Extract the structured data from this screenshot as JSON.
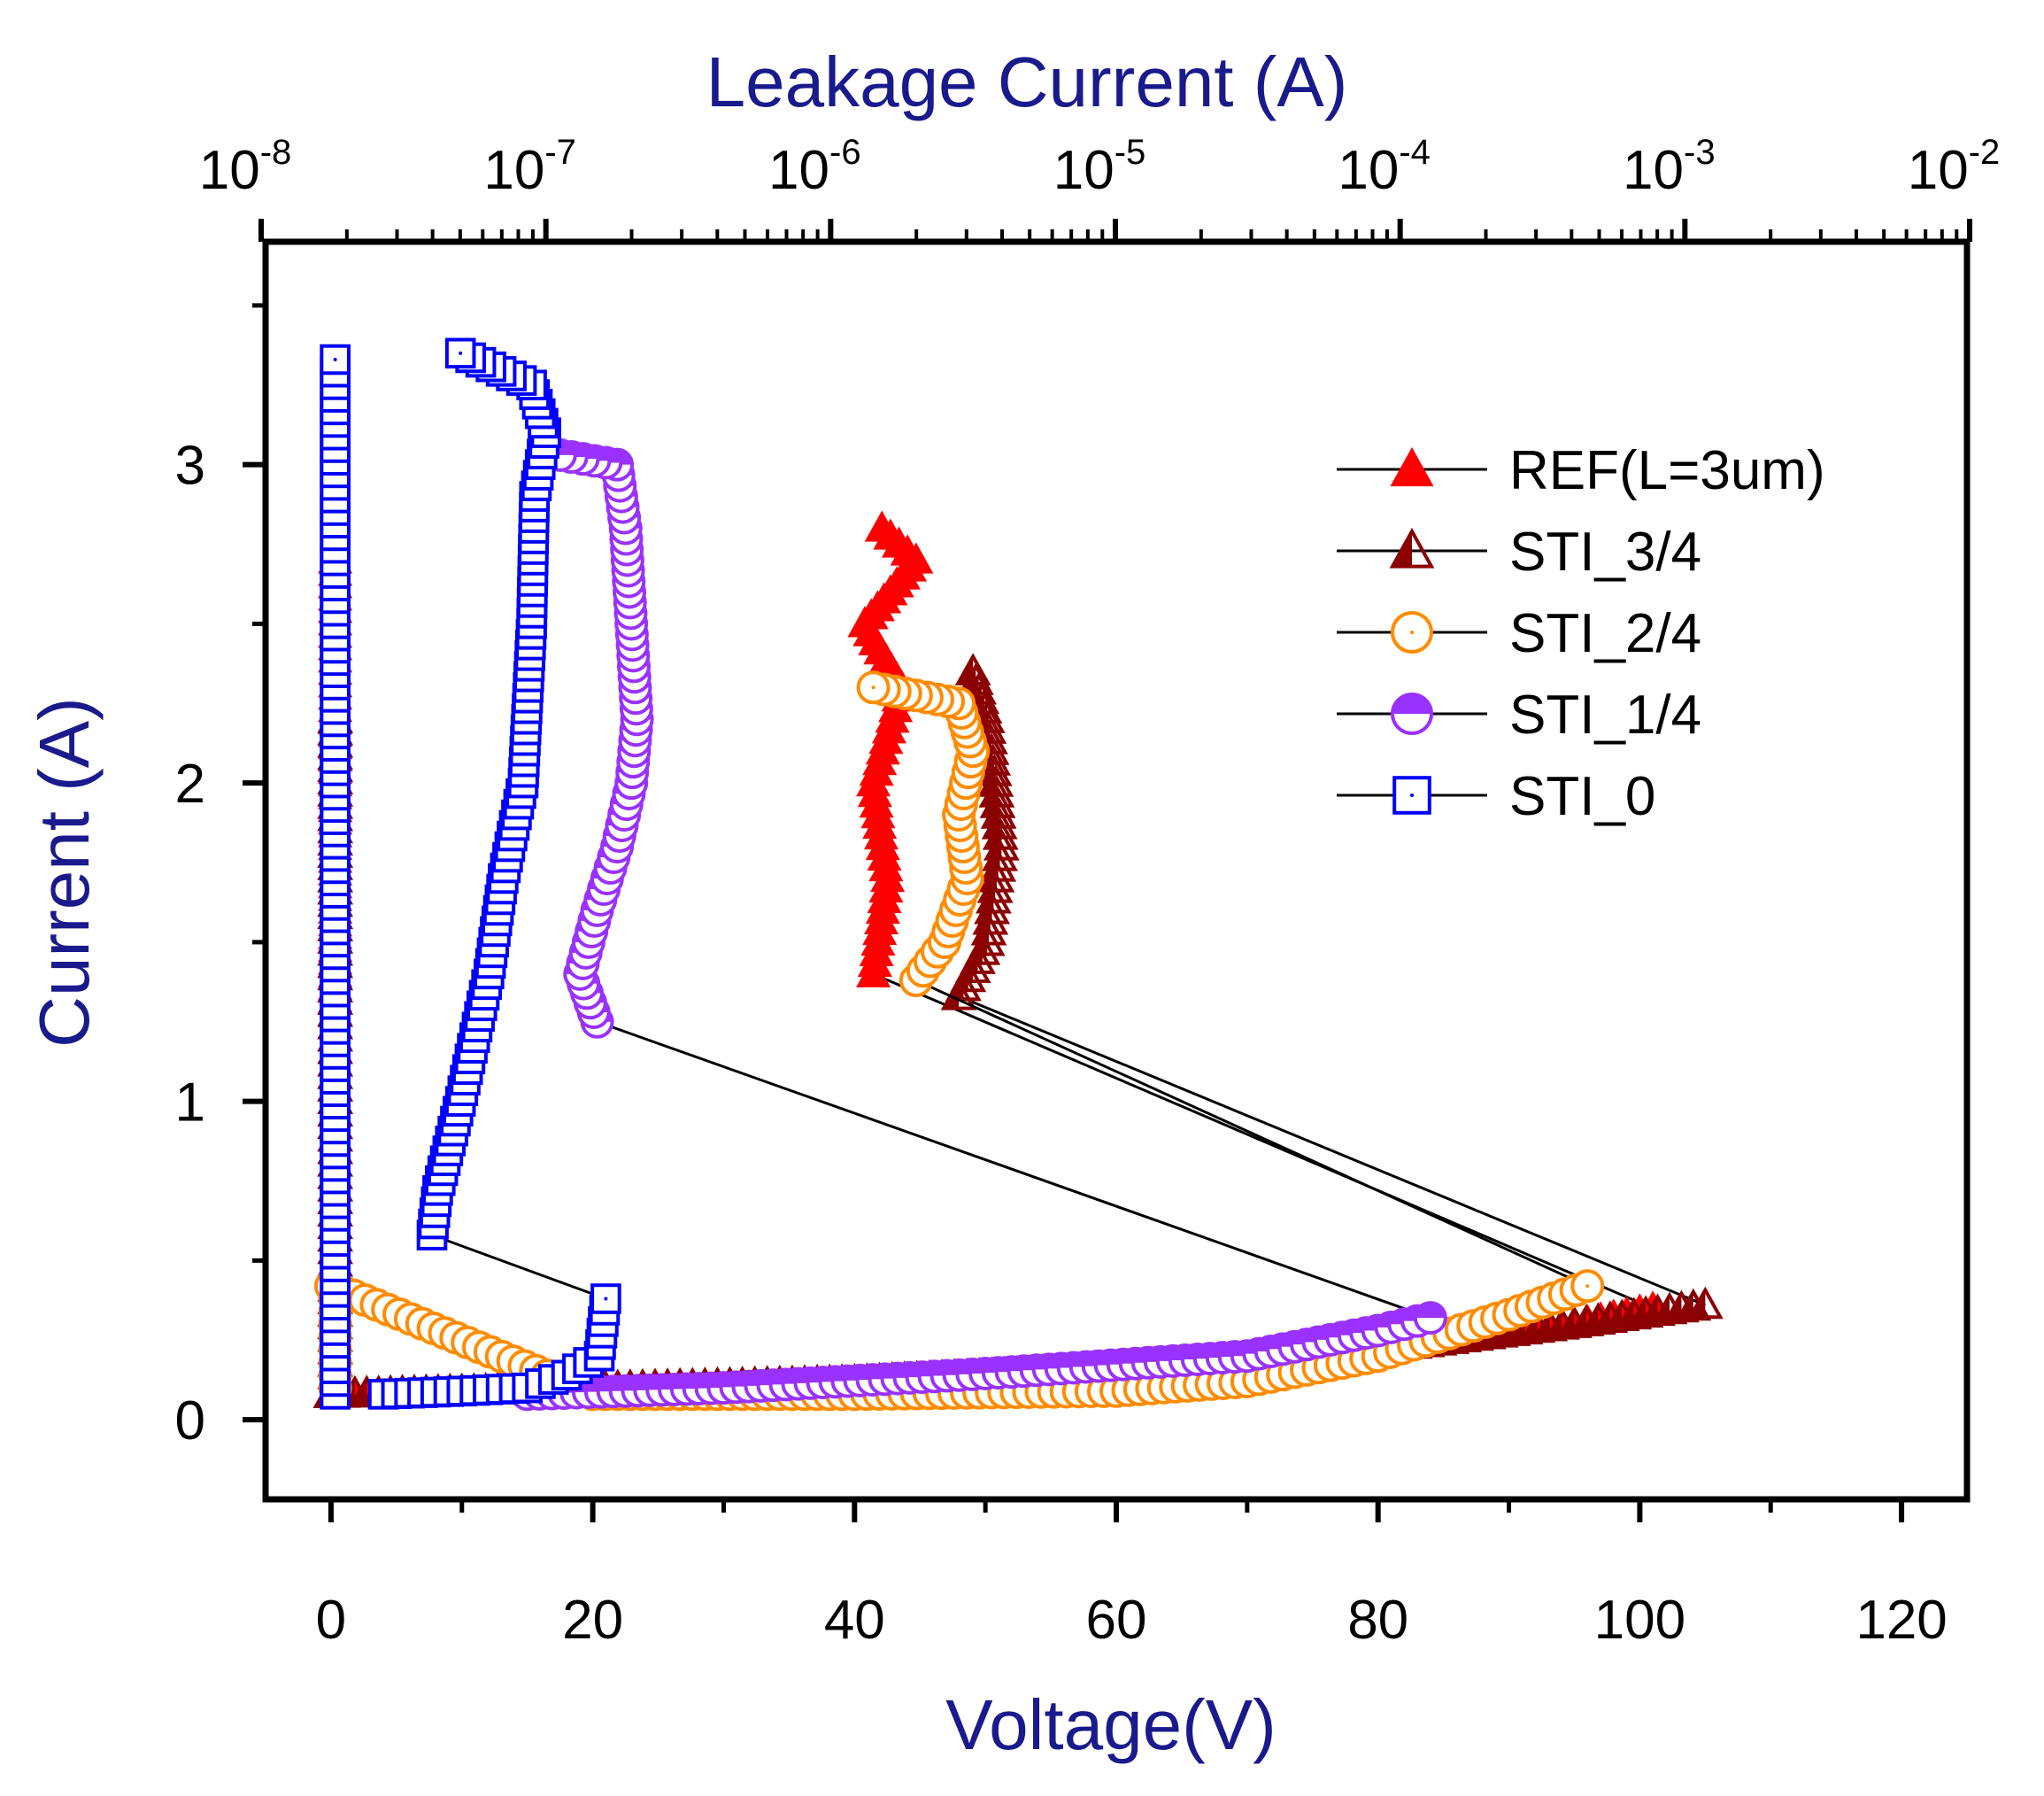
{
  "chart_data": {
    "type": "scatter",
    "title": "",
    "xlabel": "Voltage(V)",
    "ylabel": "Current (A)",
    "top_axis_label": "Leakage Current (A)",
    "xlim": [
      -5,
      125
    ],
    "ylim": [
      -0.25,
      3.7
    ],
    "top_xlim_exponent": [
      -8,
      -2
    ],
    "x_ticks": [
      "0",
      "20",
      "40",
      "60",
      "80",
      "100",
      "120"
    ],
    "y_ticks": [
      "0",
      "1",
      "2",
      "3"
    ],
    "top_ticks": [
      {
        "base": "10",
        "exp": "-8"
      },
      {
        "base": "10",
        "exp": "-7"
      },
      {
        "base": "10",
        "exp": "-6"
      },
      {
        "base": "10",
        "exp": "-5"
      },
      {
        "base": "10",
        "exp": "-4"
      },
      {
        "base": "10",
        "exp": "-3"
      },
      {
        "base": "10",
        "exp": "-2"
      }
    ],
    "legend_position": "top-right",
    "series": [
      {
        "name": "REF(L=3um)",
        "color": "#ff0000",
        "marker": "triangle-filled",
        "iv": [
          [
            0,
            0.08
          ],
          [
            10,
            0.09
          ],
          [
            20,
            0.1
          ],
          [
            40,
            0.12
          ],
          [
            60,
            0.16
          ],
          [
            80,
            0.22
          ],
          [
            95,
            0.3
          ],
          [
            101,
            0.35
          ]
        ],
        "leakage_exp": [
          [
            -7.74,
            0.1
          ],
          [
            -7.74,
            1.4
          ],
          [
            -7.74,
            2.0
          ],
          [
            -7.74,
            2.7
          ]
        ],
        "snapback": [
          [
            -5.85,
            1.4
          ],
          [
            -5.8,
            1.7
          ],
          [
            -5.85,
            2.0
          ],
          [
            -5.75,
            2.3
          ],
          [
            -5.88,
            2.5
          ],
          [
            -5.7,
            2.7
          ],
          [
            -5.82,
            2.8
          ]
        ]
      },
      {
        "name": "STI_3/4",
        "color": "#8b0000",
        "marker": "triangle-half",
        "iv": [
          [
            0,
            0.08
          ],
          [
            10,
            0.09
          ],
          [
            20,
            0.1
          ],
          [
            40,
            0.12
          ],
          [
            60,
            0.16
          ],
          [
            80,
            0.22
          ],
          [
            95,
            0.3
          ],
          [
            105,
            0.36
          ]
        ],
        "leakage_exp": [
          [
            -7.74,
            0.1
          ],
          [
            -7.74,
            1.2
          ],
          [
            -7.74,
            2.2
          ]
        ],
        "snapback": [
          [
            -5.55,
            1.33
          ],
          [
            -5.45,
            1.5
          ],
          [
            -5.4,
            1.8
          ],
          [
            -5.42,
            2.0
          ],
          [
            -5.45,
            2.2
          ],
          [
            -5.5,
            2.35
          ]
        ]
      },
      {
        "name": "STI_2/4",
        "color": "#ff8c00",
        "marker": "circle-open",
        "iv": [
          [
            0,
            0.42
          ],
          [
            20,
            0.08
          ],
          [
            40,
            0.08
          ],
          [
            60,
            0.09
          ],
          [
            70,
            0.12
          ],
          [
            80,
            0.2
          ],
          [
            90,
            0.33
          ],
          [
            96,
            0.42
          ]
        ],
        "leakage_exp": [
          [
            -7.74,
            0.1
          ],
          [
            -7.74,
            0.42
          ]
        ],
        "snapback": [
          [
            -5.7,
            1.38
          ],
          [
            -5.6,
            1.5
          ],
          [
            -5.52,
            1.7
          ],
          [
            -5.55,
            1.9
          ],
          [
            -5.5,
            2.1
          ],
          [
            -5.55,
            2.25
          ],
          [
            -5.85,
            2.3
          ]
        ]
      },
      {
        "name": "STI_1/4",
        "color": "#9932ff",
        "marker": "circle-half",
        "iv": [
          [
            15,
            0.08
          ],
          [
            30,
            0.1
          ],
          [
            48,
            0.14
          ],
          [
            52,
            0.15
          ],
          [
            70,
            0.2
          ],
          [
            80,
            0.28
          ],
          [
            84,
            0.32
          ]
        ],
        "leakage_exp": [],
        "snapback": [
          [
            -6.82,
            1.25
          ],
          [
            -6.88,
            1.4
          ],
          [
            -6.82,
            1.6
          ],
          [
            -6.75,
            1.8
          ],
          [
            -6.7,
            2.0
          ],
          [
            -6.68,
            2.2
          ],
          [
            -6.7,
            2.5
          ],
          [
            -6.72,
            2.8
          ],
          [
            -6.75,
            3.0
          ],
          [
            -6.95,
            3.03
          ]
        ]
      },
      {
        "name": "STI_0",
        "color": "#0000ff",
        "marker": "square-open",
        "iv": [
          [
            4,
            0.08
          ],
          [
            10,
            0.09
          ],
          [
            15,
            0.1
          ],
          [
            18,
            0.14
          ],
          [
            20.5,
            0.2
          ],
          [
            21,
            0.38
          ]
        ],
        "leakage_exp": [
          [
            -7.74,
            0.08
          ],
          [
            -7.74,
            0.6
          ],
          [
            -7.74,
            1.5
          ],
          [
            -7.74,
            2.5
          ],
          [
            -7.74,
            3.33
          ]
        ],
        "snapback": [
          [
            -7.4,
            0.58
          ],
          [
            -7.38,
            0.72
          ],
          [
            -7.3,
            1.0
          ],
          [
            -7.2,
            1.4
          ],
          [
            -7.15,
            1.7
          ],
          [
            -7.08,
            2.0
          ],
          [
            -7.05,
            2.5
          ],
          [
            -7.04,
            2.9
          ],
          [
            -7.0,
            3.1
          ],
          [
            -7.05,
            3.25
          ],
          [
            -7.3,
            3.35
          ]
        ]
      }
    ]
  }
}
